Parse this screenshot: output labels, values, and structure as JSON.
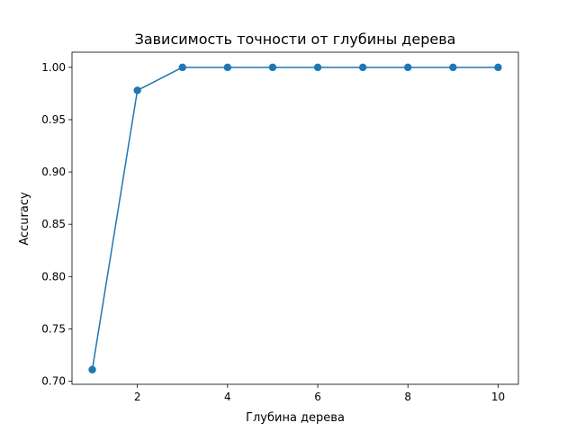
{
  "chart_data": {
    "type": "line",
    "title": "Зависимость точности от глубины дерева",
    "xlabel": "Глубина дерева",
    "ylabel": "Accuracy",
    "x": [
      1,
      2,
      3,
      4,
      5,
      6,
      7,
      8,
      9,
      10
    ],
    "y": [
      0.711,
      0.978,
      1.0,
      1.0,
      1.0,
      1.0,
      1.0,
      1.0,
      1.0,
      1.0
    ],
    "xlim": [
      0.55,
      10.45
    ],
    "ylim": [
      0.697,
      1.0145
    ],
    "xticks": [
      2,
      4,
      6,
      8,
      10
    ],
    "xtick_labels": [
      "2",
      "4",
      "6",
      "8",
      "10"
    ],
    "yticks": [
      0.7,
      0.75,
      0.8,
      0.85,
      0.9,
      0.95,
      1.0
    ],
    "ytick_labels": [
      "0.70",
      "0.75",
      "0.80",
      "0.85",
      "0.90",
      "0.95",
      "1.00"
    ],
    "marker": "circle",
    "color": "#1f77b4",
    "grid": false,
    "legend": "none"
  }
}
